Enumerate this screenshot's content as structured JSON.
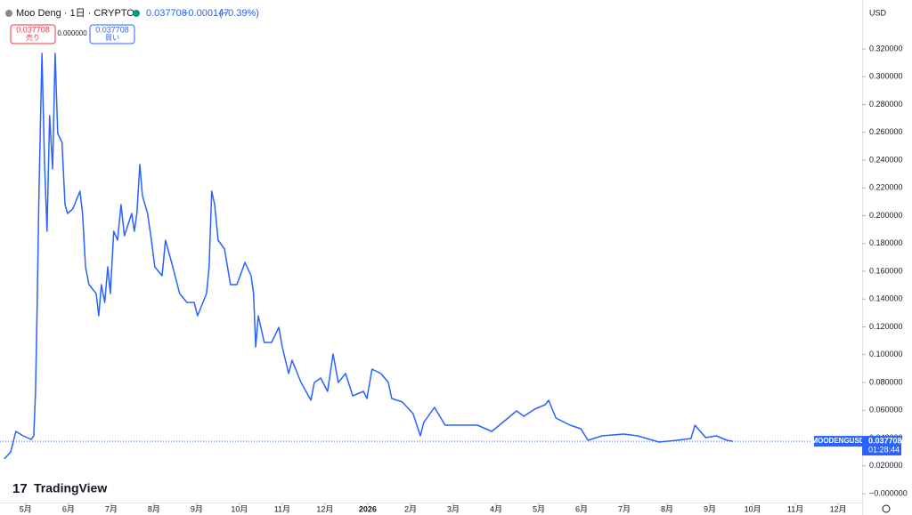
{
  "chart_data": {
    "type": "line",
    "symbol_title": "Moo Deng · 1日 · CRYPTO",
    "header_price": 0.037708,
    "header_change": "−0.000147",
    "header_change_pct": "(−0.39%)",
    "sell_price": 0.037708,
    "sell_label": "売り",
    "spread": "0.000000",
    "buy_price": 0.037708,
    "buy_label": "買い",
    "currency": "USD",
    "ticker": "MOODENGUSD",
    "last_price": 0.037708,
    "countdown": "01:28:44",
    "brand": "TradingView",
    "color": "#2962ff",
    "xlim": [
      -0.6,
      19.56
    ],
    "ylim": [
      -0.0064,
      0.3552
    ],
    "xticks": [
      {
        "value": 0,
        "label": "5月"
      },
      {
        "value": 1,
        "label": "6月"
      },
      {
        "value": 2,
        "label": "7月"
      },
      {
        "value": 3,
        "label": "8月"
      },
      {
        "value": 4,
        "label": "9月"
      },
      {
        "value": 5,
        "label": "10月"
      },
      {
        "value": 6,
        "label": "11月"
      },
      {
        "value": 7,
        "label": "12月"
      },
      {
        "value": 8,
        "label": "2026"
      },
      {
        "value": 9,
        "label": "2月"
      },
      {
        "value": 10,
        "label": "3月"
      },
      {
        "value": 11,
        "label": "4月"
      },
      {
        "value": 12,
        "label": "5月"
      },
      {
        "value": 13,
        "label": "6月"
      },
      {
        "value": 14,
        "label": "7月"
      },
      {
        "value": 15,
        "label": "8月"
      },
      {
        "value": 16,
        "label": "9月"
      },
      {
        "value": 17,
        "label": "10月"
      },
      {
        "value": 18,
        "label": "11月"
      },
      {
        "value": 19,
        "label": "12月"
      }
    ],
    "yticks": [
      {
        "value": 0,
        "label": "−0.000000"
      },
      {
        "value": 0.02,
        "label": "0.020000"
      },
      {
        "value": 0.04,
        "label": "0.040000"
      },
      {
        "value": 0.06,
        "label": "0.060000"
      },
      {
        "value": 0.08,
        "label": "0.080000"
      },
      {
        "value": 0.1,
        "label": "0.100000"
      },
      {
        "value": 0.12,
        "label": "0.120000"
      },
      {
        "value": 0.14,
        "label": "0.140000"
      },
      {
        "value": 0.16,
        "label": "0.160000"
      },
      {
        "value": 0.18,
        "label": "0.180000"
      },
      {
        "value": 0.2,
        "label": "0.200000"
      },
      {
        "value": 0.22,
        "label": "0.220000"
      },
      {
        "value": 0.24,
        "label": "0.240000"
      },
      {
        "value": 0.26,
        "label": "0.260000"
      },
      {
        "value": 0.28,
        "label": "0.280000"
      },
      {
        "value": 0.3,
        "label": "0.300000"
      },
      {
        "value": 0.32,
        "label": "0.320000"
      }
    ],
    "x": [
      -0.5,
      -0.35,
      -0.23,
      -0.06,
      0.13,
      0.19,
      0.23,
      0.27,
      0.31,
      0.38,
      0.44,
      0.5,
      0.56,
      0.63,
      0.69,
      0.75,
      0.85,
      0.92,
      0.98,
      1.1,
      1.27,
      1.33,
      1.4,
      1.48,
      1.65,
      1.71,
      1.77,
      1.85,
      1.92,
      1.98,
      2.06,
      2.15,
      2.23,
      2.31,
      2.48,
      2.54,
      2.6,
      2.67,
      2.73,
      2.85,
      2.94,
      3.02,
      3.19,
      3.27,
      3.44,
      3.6,
      3.77,
      3.94,
      4.02,
      4.23,
      4.29,
      4.35,
      4.42,
      4.5,
      4.65,
      4.79,
      4.94,
      5.13,
      5.27,
      5.33,
      5.38,
      5.44,
      5.58,
      5.75,
      5.92,
      6.0,
      6.15,
      6.23,
      6.44,
      6.67,
      6.75,
      6.9,
      7.06,
      7.19,
      7.31,
      7.48,
      7.65,
      7.9,
      7.98,
      8.1,
      8.31,
      8.48,
      8.56,
      8.81,
      9.06,
      9.23,
      9.31,
      9.56,
      9.81,
      10.06,
      10.31,
      10.56,
      10.9,
      11.23,
      11.48,
      11.65,
      11.9,
      12.15,
      12.23,
      12.4,
      12.73,
      12.98,
      13.15,
      13.48,
      13.98,
      14.31,
      14.81,
      15.23,
      15.56,
      15.65,
      15.9,
      16.15,
      16.4,
      16.54
    ],
    "values": [
      0.025,
      0.03,
      0.0448,
      0.0416,
      0.039,
      0.0416,
      0.0736,
      0.1376,
      0.2144,
      0.3168,
      0.24,
      0.1888,
      0.272,
      0.2336,
      0.3168,
      0.2592,
      0.2528,
      0.208,
      0.2016,
      0.2048,
      0.2176,
      0.2016,
      0.1632,
      0.1504,
      0.144,
      0.128,
      0.1504,
      0.1376,
      0.1632,
      0.144,
      0.1888,
      0.1824,
      0.208,
      0.1856,
      0.2016,
      0.1888,
      0.2016,
      0.2368,
      0.2144,
      0.2016,
      0.1824,
      0.1632,
      0.1568,
      0.1824,
      0.1632,
      0.144,
      0.1376,
      0.1376,
      0.128,
      0.144,
      0.1632,
      0.2176,
      0.208,
      0.1824,
      0.176,
      0.1504,
      0.1504,
      0.1664,
      0.1568,
      0.144,
      0.1056,
      0.128,
      0.1088,
      0.1088,
      0.1197,
      0.1056,
      0.0864,
      0.096,
      0.08,
      0.0672,
      0.08,
      0.0832,
      0.0736,
      0.1005,
      0.08,
      0.0864,
      0.0704,
      0.0736,
      0.0685,
      0.0896,
      0.0864,
      0.08,
      0.0685,
      0.0659,
      0.0576,
      0.0416,
      0.0512,
      0.0621,
      0.0493,
      0.0493,
      0.0493,
      0.0493,
      0.0448,
      0.0531,
      0.0595,
      0.0557,
      0.0608,
      0.064,
      0.0672,
      0.0544,
      0.0493,
      0.0467,
      0.0384,
      0.0416,
      0.0429,
      0.0416,
      0.0371,
      0.0384,
      0.0397,
      0.0493,
      0.0403,
      0.0416,
      0.0384,
      0.037708
    ]
  }
}
